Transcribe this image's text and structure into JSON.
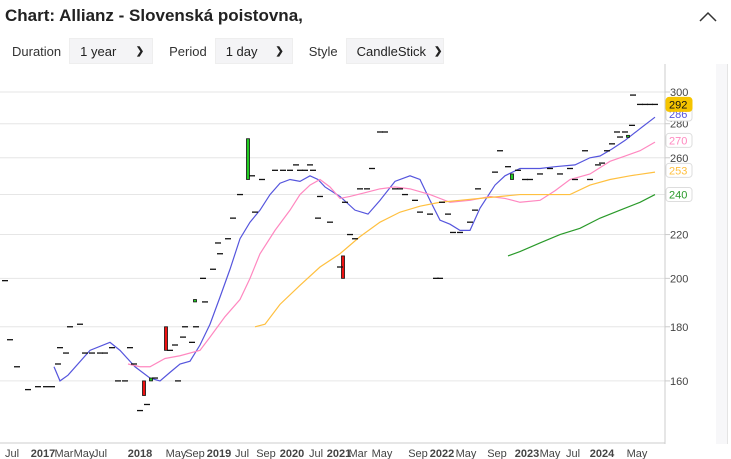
{
  "title": "Chart: Allianz - Slovenská poistovna,",
  "controls": {
    "duration_label": "Duration",
    "duration_value": "1 year",
    "period_label": "Period",
    "period_value": "1 day",
    "style_label": "Style",
    "style_value": "CandleStick"
  },
  "icons": {
    "collapse": "chevron-up-icon",
    "select": "chevron-down-icon"
  },
  "chart_data": {
    "type": "candlestick",
    "x_unit": "session index",
    "yscale": "log",
    "ylim": [
      140,
      305
    ],
    "yticks": [
      160,
      180,
      200,
      220,
      240,
      260,
      280,
      300
    ],
    "xticks": [
      {
        "t": 2.4,
        "label": "Jul",
        "bold": false
      },
      {
        "t": 8.6,
        "label": "2017",
        "bold": true
      },
      {
        "t": 12.8,
        "label": "Mar",
        "bold": false
      },
      {
        "t": 16.8,
        "label": "May",
        "bold": false
      },
      {
        "t": 20,
        "label": "Jul",
        "bold": false
      },
      {
        "t": 28,
        "label": "2018",
        "bold": true
      },
      {
        "t": 35.2,
        "label": "May",
        "bold": false
      },
      {
        "t": 39,
        "label": "Sep",
        "bold": false
      },
      {
        "t": 43.8,
        "label": "2019",
        "bold": true
      },
      {
        "t": 48.4,
        "label": "Jul",
        "bold": false
      },
      {
        "t": 53.2,
        "label": "Sep",
        "bold": false
      },
      {
        "t": 58.4,
        "label": "2020",
        "bold": true
      },
      {
        "t": 63.2,
        "label": "Jul",
        "bold": false
      },
      {
        "t": 67.8,
        "label": "2021",
        "bold": true
      },
      {
        "t": 71.6,
        "label": "Mar",
        "bold": false
      },
      {
        "t": 76.4,
        "label": "May",
        "bold": false
      },
      {
        "t": 83.6,
        "label": "Sep",
        "bold": false
      },
      {
        "t": 88.4,
        "label": "2022",
        "bold": true
      },
      {
        "t": 93.2,
        "label": "May",
        "bold": false
      },
      {
        "t": 99.4,
        "label": "Sep",
        "bold": false
      },
      {
        "t": 105.4,
        "label": "2023",
        "bold": true
      },
      {
        "t": 110,
        "label": "May",
        "bold": false
      },
      {
        "t": 114.6,
        "label": "Jul",
        "bold": false
      },
      {
        "t": 120.4,
        "label": "2024",
        "bold": true
      },
      {
        "t": 127.4,
        "label": "May",
        "bold": false
      }
    ],
    "candles": [
      [
        1,
        199,
        199
      ],
      [
        2,
        175,
        175
      ],
      [
        3.4,
        165,
        165
      ],
      [
        5.6,
        157,
        157
      ],
      [
        7.6,
        158,
        158
      ],
      [
        9.2,
        158,
        158
      ],
      [
        10.4,
        158,
        158
      ],
      [
        11.6,
        166,
        166
      ],
      [
        12,
        172,
        172
      ],
      [
        13.2,
        170,
        170
      ],
      [
        14,
        180,
        180
      ],
      [
        16,
        181,
        181
      ],
      [
        17,
        170,
        170
      ],
      [
        18.4,
        170,
        170
      ],
      [
        20,
        170,
        170
      ],
      [
        21,
        170,
        170
      ],
      [
        22.4,
        172,
        172
      ],
      [
        23.6,
        160,
        160
      ],
      [
        25,
        160,
        160
      ],
      [
        26,
        172,
        172
      ],
      [
        26.8,
        166,
        166
      ],
      [
        28,
        150,
        150
      ],
      [
        28.8,
        160,
        155
      ],
      [
        29.4,
        152,
        152
      ],
      [
        30.2,
        160,
        161
      ],
      [
        31,
        161,
        161
      ],
      [
        33.2,
        180,
        171
      ],
      [
        34,
        171,
        171
      ],
      [
        35,
        173,
        173
      ],
      [
        35.6,
        160,
        160
      ],
      [
        36.6,
        176,
        176
      ],
      [
        37,
        180,
        180
      ],
      [
        38.4,
        174,
        174
      ],
      [
        39,
        190,
        191
      ],
      [
        39.2,
        180,
        180
      ],
      [
        40.6,
        200,
        200
      ],
      [
        41,
        190,
        190
      ],
      [
        42.6,
        204,
        204
      ],
      [
        43.6,
        216,
        216
      ],
      [
        44,
        211,
        211
      ],
      [
        45.6,
        218,
        218
      ],
      [
        46.6,
        228,
        228
      ],
      [
        48,
        240,
        240
      ],
      [
        49.6,
        248,
        271
      ],
      [
        50.4,
        250,
        250
      ],
      [
        51,
        231,
        231
      ],
      [
        52.4,
        248,
        248
      ],
      [
        55,
        253,
        253
      ],
      [
        56.6,
        253,
        253
      ],
      [
        58,
        253,
        253
      ],
      [
        59.2,
        256,
        256
      ],
      [
        60,
        253,
        253
      ],
      [
        61,
        253,
        253
      ],
      [
        62,
        256,
        256
      ],
      [
        62.6,
        253,
        253
      ],
      [
        63.6,
        228,
        228
      ],
      [
        64,
        239,
        239
      ],
      [
        66,
        226,
        226
      ],
      [
        68.6,
        210,
        200
      ],
      [
        68,
        205,
        205
      ],
      [
        69,
        236,
        236
      ],
      [
        70,
        220,
        220
      ],
      [
        71,
        218,
        218
      ],
      [
        72,
        243,
        243
      ],
      [
        73.4,
        243,
        243
      ],
      [
        74.4,
        254,
        254
      ],
      [
        76,
        275,
        275
      ],
      [
        77,
        275,
        275
      ],
      [
        79,
        243,
        243
      ],
      [
        80,
        243,
        243
      ],
      [
        81,
        240,
        240
      ],
      [
        83,
        237,
        237
      ],
      [
        84,
        231,
        231
      ],
      [
        86,
        230,
        230
      ],
      [
        87.2,
        200,
        200
      ],
      [
        88,
        200,
        200
      ],
      [
        88.4,
        236,
        236
      ],
      [
        89.6,
        230,
        230
      ],
      [
        90.6,
        221,
        221
      ],
      [
        92,
        221,
        221
      ],
      [
        94,
        226,
        226
      ],
      [
        95,
        232,
        232
      ],
      [
        95.6,
        243,
        243
      ],
      [
        99,
        252,
        252
      ],
      [
        100,
        264,
        264
      ],
      [
        101.6,
        255,
        255
      ],
      [
        102.4,
        248,
        251
      ],
      [
        103.6,
        253,
        253
      ],
      [
        105,
        248,
        248
      ],
      [
        106,
        248,
        248
      ],
      [
        108,
        251,
        251
      ],
      [
        110,
        254,
        254
      ],
      [
        112,
        251,
        251
      ],
      [
        114,
        254,
        254
      ],
      [
        115,
        248,
        248
      ],
      [
        117,
        264,
        264
      ],
      [
        118,
        248,
        248
      ],
      [
        119.6,
        256,
        256
      ],
      [
        120.4,
        257,
        257
      ],
      [
        121.4,
        264,
        264
      ],
      [
        122.4,
        268,
        268
      ],
      [
        123.4,
        275,
        275
      ],
      [
        124,
        272,
        272
      ],
      [
        125,
        275,
        275
      ],
      [
        125.6,
        272,
        273
      ],
      [
        126.4,
        279,
        279
      ],
      [
        126.6,
        298,
        298
      ],
      [
        128,
        292,
        292
      ],
      [
        129,
        292,
        292
      ],
      [
        130,
        292,
        292
      ],
      [
        131,
        292,
        292
      ]
    ],
    "series": [
      {
        "name": "MA short",
        "color": "#5555dd",
        "last": "286",
        "points": [
          [
            10.8,
            165
          ],
          [
            12,
            160
          ],
          [
            13.6,
            162
          ],
          [
            18,
            171
          ],
          [
            22,
            174
          ],
          [
            24,
            171
          ],
          [
            27,
            165
          ],
          [
            30,
            161
          ],
          [
            32,
            160
          ],
          [
            34,
            163
          ],
          [
            36,
            166
          ],
          [
            38,
            167
          ],
          [
            40,
            173
          ],
          [
            42,
            181
          ],
          [
            44,
            192
          ],
          [
            46,
            204
          ],
          [
            48,
            218
          ],
          [
            50,
            226
          ],
          [
            52,
            232
          ],
          [
            54,
            240
          ],
          [
            56,
            246
          ],
          [
            58,
            248
          ],
          [
            60,
            247
          ],
          [
            62,
            250
          ],
          [
            63.6,
            248
          ],
          [
            65,
            244
          ],
          [
            68,
            239
          ],
          [
            71,
            232
          ],
          [
            73.6,
            230
          ],
          [
            76,
            237
          ],
          [
            79,
            247
          ],
          [
            82,
            250
          ],
          [
            84,
            248
          ],
          [
            86,
            237
          ],
          [
            88,
            227
          ],
          [
            90,
            225
          ],
          [
            92,
            222
          ],
          [
            94,
            222
          ],
          [
            96,
            233
          ],
          [
            99,
            245
          ],
          [
            101,
            250
          ],
          [
            104,
            254
          ],
          [
            108,
            254
          ],
          [
            111,
            255
          ],
          [
            115,
            256
          ],
          [
            118,
            260
          ],
          [
            120,
            261
          ],
          [
            122.4,
            265
          ],
          [
            125,
            270
          ],
          [
            128,
            277
          ],
          [
            131,
            284
          ]
        ]
      },
      {
        "name": "MA medium",
        "color": "#ff88c0",
        "last": "270",
        "points": [
          [
            25.6,
            166
          ],
          [
            28,
            165
          ],
          [
            30,
            165
          ],
          [
            33,
            168
          ],
          [
            36,
            169
          ],
          [
            40,
            171
          ],
          [
            42,
            176
          ],
          [
            45,
            184
          ],
          [
            48,
            191
          ],
          [
            50,
            200
          ],
          [
            52,
            211
          ],
          [
            55,
            222
          ],
          [
            58,
            232
          ],
          [
            60,
            240
          ],
          [
            62,
            245
          ],
          [
            64,
            248
          ],
          [
            66,
            244
          ],
          [
            68,
            238
          ],
          [
            70,
            239
          ],
          [
            73,
            241
          ],
          [
            76,
            243
          ],
          [
            79,
            244
          ],
          [
            82,
            243
          ],
          [
            86,
            240
          ],
          [
            90,
            236
          ],
          [
            94,
            237
          ],
          [
            98,
            239
          ],
          [
            101,
            238
          ],
          [
            104,
            236
          ],
          [
            108,
            237
          ],
          [
            111,
            242
          ],
          [
            114,
            248
          ],
          [
            118,
            251
          ],
          [
            122,
            258
          ],
          [
            125,
            261
          ],
          [
            128,
            264
          ],
          [
            131,
            269
          ]
        ]
      },
      {
        "name": "MA long",
        "color": "#ffc040",
        "last": "253",
        "points": [
          [
            51,
            180
          ],
          [
            53,
            181
          ],
          [
            56,
            189
          ],
          [
            60,
            197
          ],
          [
            64,
            205
          ],
          [
            68,
            211
          ],
          [
            72,
            219
          ],
          [
            76,
            226
          ],
          [
            80,
            231
          ],
          [
            84,
            234
          ],
          [
            88,
            236
          ],
          [
            92,
            237
          ],
          [
            96,
            238
          ],
          [
            100,
            239
          ],
          [
            104,
            240
          ],
          [
            108,
            240
          ],
          [
            112,
            240
          ],
          [
            114,
            240
          ],
          [
            118,
            245
          ],
          [
            122,
            248
          ],
          [
            126,
            250
          ],
          [
            131,
            252
          ]
        ]
      },
      {
        "name": "MA very long",
        "color": "#2a9a2a",
        "last": "240",
        "points": [
          [
            101.6,
            210
          ],
          [
            104,
            212
          ],
          [
            108,
            216
          ],
          [
            112,
            220
          ],
          [
            116,
            223
          ],
          [
            120,
            228
          ],
          [
            124,
            232
          ],
          [
            128,
            236
          ],
          [
            131,
            240
          ]
        ]
      }
    ],
    "last_price": "292",
    "last_price_color": "#f5c400"
  }
}
